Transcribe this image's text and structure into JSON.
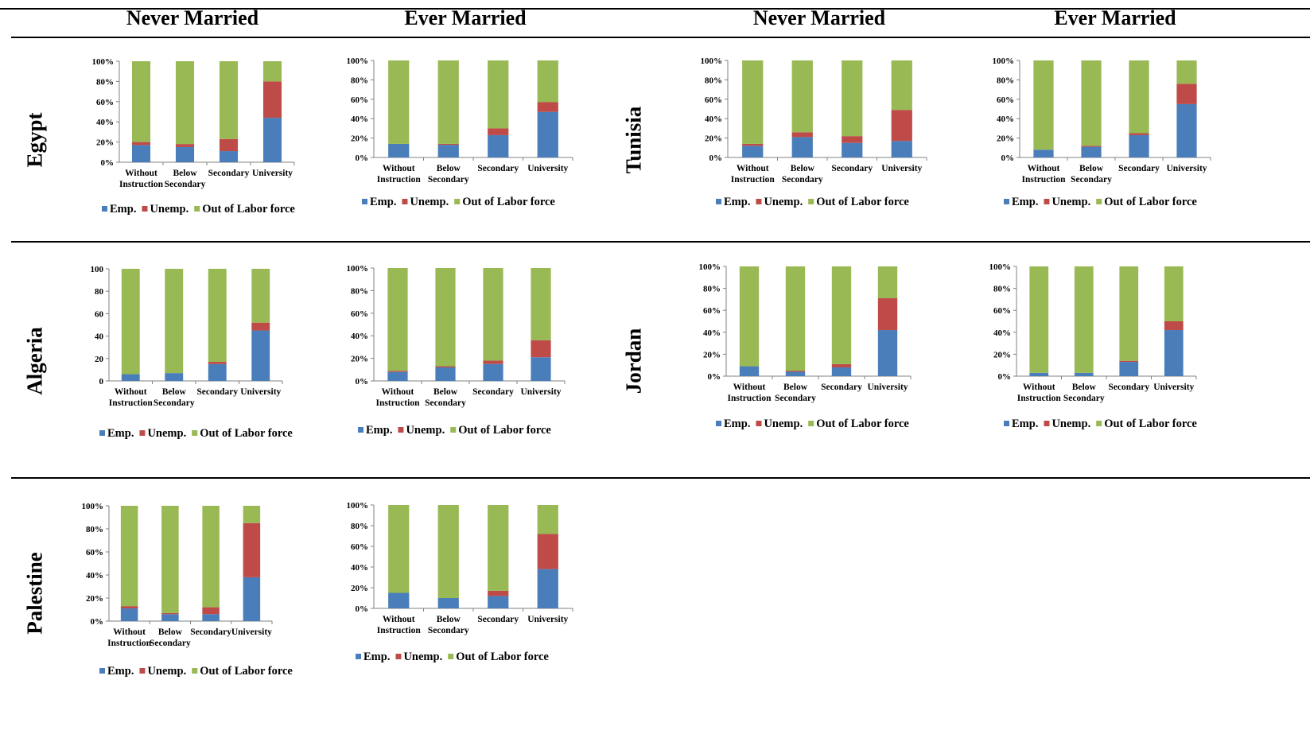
{
  "headers": [
    "Never Married",
    "Ever Married",
    "Never Married",
    "Ever Married"
  ],
  "rows": [
    "Egypt",
    "Algeria",
    "Palestine",
    "Tunisia",
    "Jordan"
  ],
  "legend": [
    "Emp.",
    "Unemp.",
    "Out of Labor force"
  ],
  "colors": {
    "emp": "#4a7ebb",
    "unemp": "#be4b48",
    "olf": "#98b954"
  },
  "chart_data": [
    {
      "type": "bar",
      "stacked": true,
      "country": "Egypt",
      "status": "Never Married",
      "categories": [
        "Without Instruction",
        "Below Secondary",
        "Secondary",
        "University"
      ],
      "yticks": [
        "0%",
        "20%",
        "40%",
        "60%",
        "80%",
        "100%"
      ],
      "ylim": [
        0,
        100
      ],
      "series": [
        {
          "name": "Emp.",
          "values": [
            17,
            15,
            11,
            44
          ]
        },
        {
          "name": "Unemp.",
          "values": [
            3,
            3,
            12,
            36
          ]
        },
        {
          "name": "Out of Labor force",
          "values": [
            80,
            82,
            77,
            20
          ]
        }
      ]
    },
    {
      "type": "bar",
      "stacked": true,
      "country": "Egypt",
      "status": "Ever Married",
      "categories": [
        "Without Instruction",
        "Below Secondary",
        "Secondary",
        "University"
      ],
      "yticks": [
        "0%",
        "20%",
        "40%",
        "60%",
        "80%",
        "100%"
      ],
      "ylim": [
        0,
        100
      ],
      "series": [
        {
          "name": "Emp.",
          "values": [
            14,
            13,
            23,
            47
          ]
        },
        {
          "name": "Unemp.",
          "values": [
            0,
            1,
            7,
            10
          ]
        },
        {
          "name": "Out of Labor force",
          "values": [
            86,
            86,
            70,
            43
          ]
        }
      ]
    },
    {
      "type": "bar",
      "stacked": true,
      "country": "Tunisia",
      "status": "Never Married",
      "categories": [
        "Without Instruction",
        "Below Secondary",
        "Secondary",
        "University"
      ],
      "yticks": [
        "0%",
        "20%",
        "40%",
        "60%",
        "80%",
        "100%"
      ],
      "ylim": [
        0,
        100
      ],
      "series": [
        {
          "name": "Emp.",
          "values": [
            12,
            21,
            15,
            17
          ]
        },
        {
          "name": "Unemp.",
          "values": [
            2,
            5,
            7,
            32
          ]
        },
        {
          "name": "Out of Labor force",
          "values": [
            86,
            74,
            78,
            51
          ]
        }
      ]
    },
    {
      "type": "bar",
      "stacked": true,
      "country": "Tunisia",
      "status": "Ever Married",
      "categories": [
        "Without Instruction",
        "Below Secondary",
        "Secondary",
        "University"
      ],
      "yticks": [
        "0%",
        "20%",
        "40%",
        "60%",
        "80%",
        "100%"
      ],
      "ylim": [
        0,
        100
      ],
      "series": [
        {
          "name": "Emp.",
          "values": [
            8,
            11,
            23,
            55
          ]
        },
        {
          "name": "Unemp.",
          "values": [
            0,
            1,
            2,
            21
          ]
        },
        {
          "name": "Out of Labor force",
          "values": [
            92,
            88,
            75,
            24
          ]
        }
      ]
    },
    {
      "type": "bar",
      "stacked": true,
      "country": "Algeria",
      "status": "Never Married",
      "categories": [
        "Without Instruction",
        "Below Secondary",
        "Secondary",
        "University"
      ],
      "yticks": [
        "0",
        "20",
        "40",
        "60",
        "80",
        "100"
      ],
      "ylim": [
        0,
        100
      ],
      "series": [
        {
          "name": "Emp.",
          "values": [
            6,
            7,
            15,
            45
          ]
        },
        {
          "name": "Unemp.",
          "values": [
            0,
            0,
            2,
            7
          ]
        },
        {
          "name": "Out of Labor force",
          "values": [
            94,
            93,
            83,
            48
          ]
        }
      ]
    },
    {
      "type": "bar",
      "stacked": true,
      "country": "Algeria",
      "status": "Ever Married",
      "categories": [
        "Without Instruction",
        "Below Secondary",
        "Secondary",
        "University"
      ],
      "yticks": [
        "0%",
        "20%",
        "40%",
        "60%",
        "80%",
        "100%"
      ],
      "ylim": [
        0,
        100
      ],
      "series": [
        {
          "name": "Emp.",
          "values": [
            8,
            12,
            15,
            21
          ]
        },
        {
          "name": "Unemp.",
          "values": [
            1,
            1,
            3,
            15
          ]
        },
        {
          "name": "Out of Labor force",
          "values": [
            91,
            87,
            82,
            64
          ]
        }
      ]
    },
    {
      "type": "bar",
      "stacked": true,
      "country": "Jordan",
      "status": "Never Married",
      "categories": [
        "Without Instruction",
        "Below Secondary",
        "Secondary",
        "University"
      ],
      "yticks": [
        "0%",
        "20%",
        "40%",
        "60%",
        "80%",
        "100%"
      ],
      "ylim": [
        0,
        100
      ],
      "series": [
        {
          "name": "Emp.",
          "values": [
            9,
            4,
            8,
            42
          ]
        },
        {
          "name": "Unemp.",
          "values": [
            0,
            1,
            3,
            29
          ]
        },
        {
          "name": "Out of Labor force",
          "values": [
            91,
            95,
            89,
            29
          ]
        }
      ]
    },
    {
      "type": "bar",
      "stacked": true,
      "country": "Jordan",
      "status": "Ever Married",
      "categories": [
        "Without Instruction",
        "Below Secondary",
        "Secondary",
        "University"
      ],
      "yticks": [
        "0%",
        "20%",
        "40%",
        "60%",
        "80%",
        "100%"
      ],
      "ylim": [
        0,
        100
      ],
      "series": [
        {
          "name": "Emp.",
          "values": [
            3,
            3,
            13,
            42
          ]
        },
        {
          "name": "Unemp.",
          "values": [
            0,
            0,
            1,
            8
          ]
        },
        {
          "name": "Out of Labor force",
          "values": [
            97,
            97,
            86,
            50
          ]
        }
      ]
    },
    {
      "type": "bar",
      "stacked": true,
      "country": "Palestine",
      "status": "Never Married",
      "categories": [
        "Without Instruction",
        "Below Secondary",
        "Secondary",
        "University"
      ],
      "yticks": [
        "0%",
        "20%",
        "40%",
        "60%",
        "80%",
        "100%"
      ],
      "ylim": [
        0,
        100
      ],
      "series": [
        {
          "name": "Emp.",
          "values": [
            11,
            6,
            6,
            38
          ]
        },
        {
          "name": "Unemp.",
          "values": [
            2,
            1,
            6,
            47
          ]
        },
        {
          "name": "Out of Labor force",
          "values": [
            87,
            93,
            88,
            15
          ]
        }
      ]
    },
    {
      "type": "bar",
      "stacked": true,
      "country": "Palestine",
      "status": "Ever Married",
      "categories": [
        "Without Instruction",
        "Below Secondary",
        "Secondary",
        "University"
      ],
      "yticks": [
        "0%",
        "20%",
        "40%",
        "60%",
        "80%",
        "100%"
      ],
      "ylim": [
        0,
        100
      ],
      "series": [
        {
          "name": "Emp.",
          "values": [
            15,
            10,
            12,
            38
          ]
        },
        {
          "name": "Unemp.",
          "values": [
            0,
            0,
            5,
            34
          ]
        },
        {
          "name": "Out of Labor force",
          "values": [
            85,
            90,
            83,
            28
          ]
        }
      ]
    }
  ]
}
